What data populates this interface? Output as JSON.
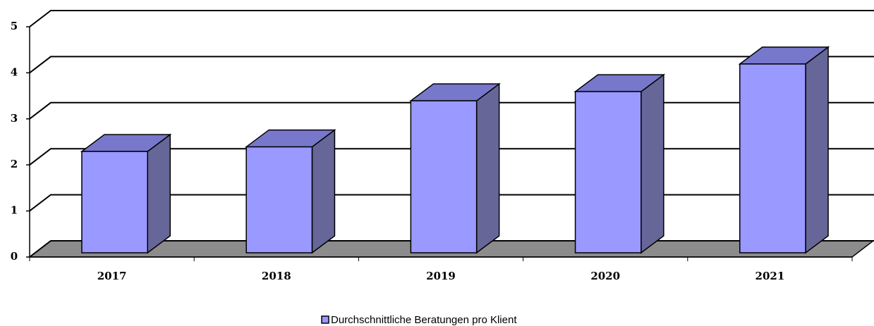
{
  "chart_data": {
    "type": "bar",
    "categories": [
      "2017",
      "2018",
      "2019",
      "2020",
      "2021"
    ],
    "series": [
      {
        "name": "Durchschnittliche Beratungen pro Klient",
        "color": "#9999ff",
        "values": [
          2.2,
          2.3,
          3.3,
          3.5,
          4.1
        ]
      }
    ],
    "ylim": [
      0,
      5
    ],
    "yticks": [
      0,
      1,
      2,
      3,
      4,
      5
    ],
    "grid": true,
    "legend": "bottom"
  }
}
